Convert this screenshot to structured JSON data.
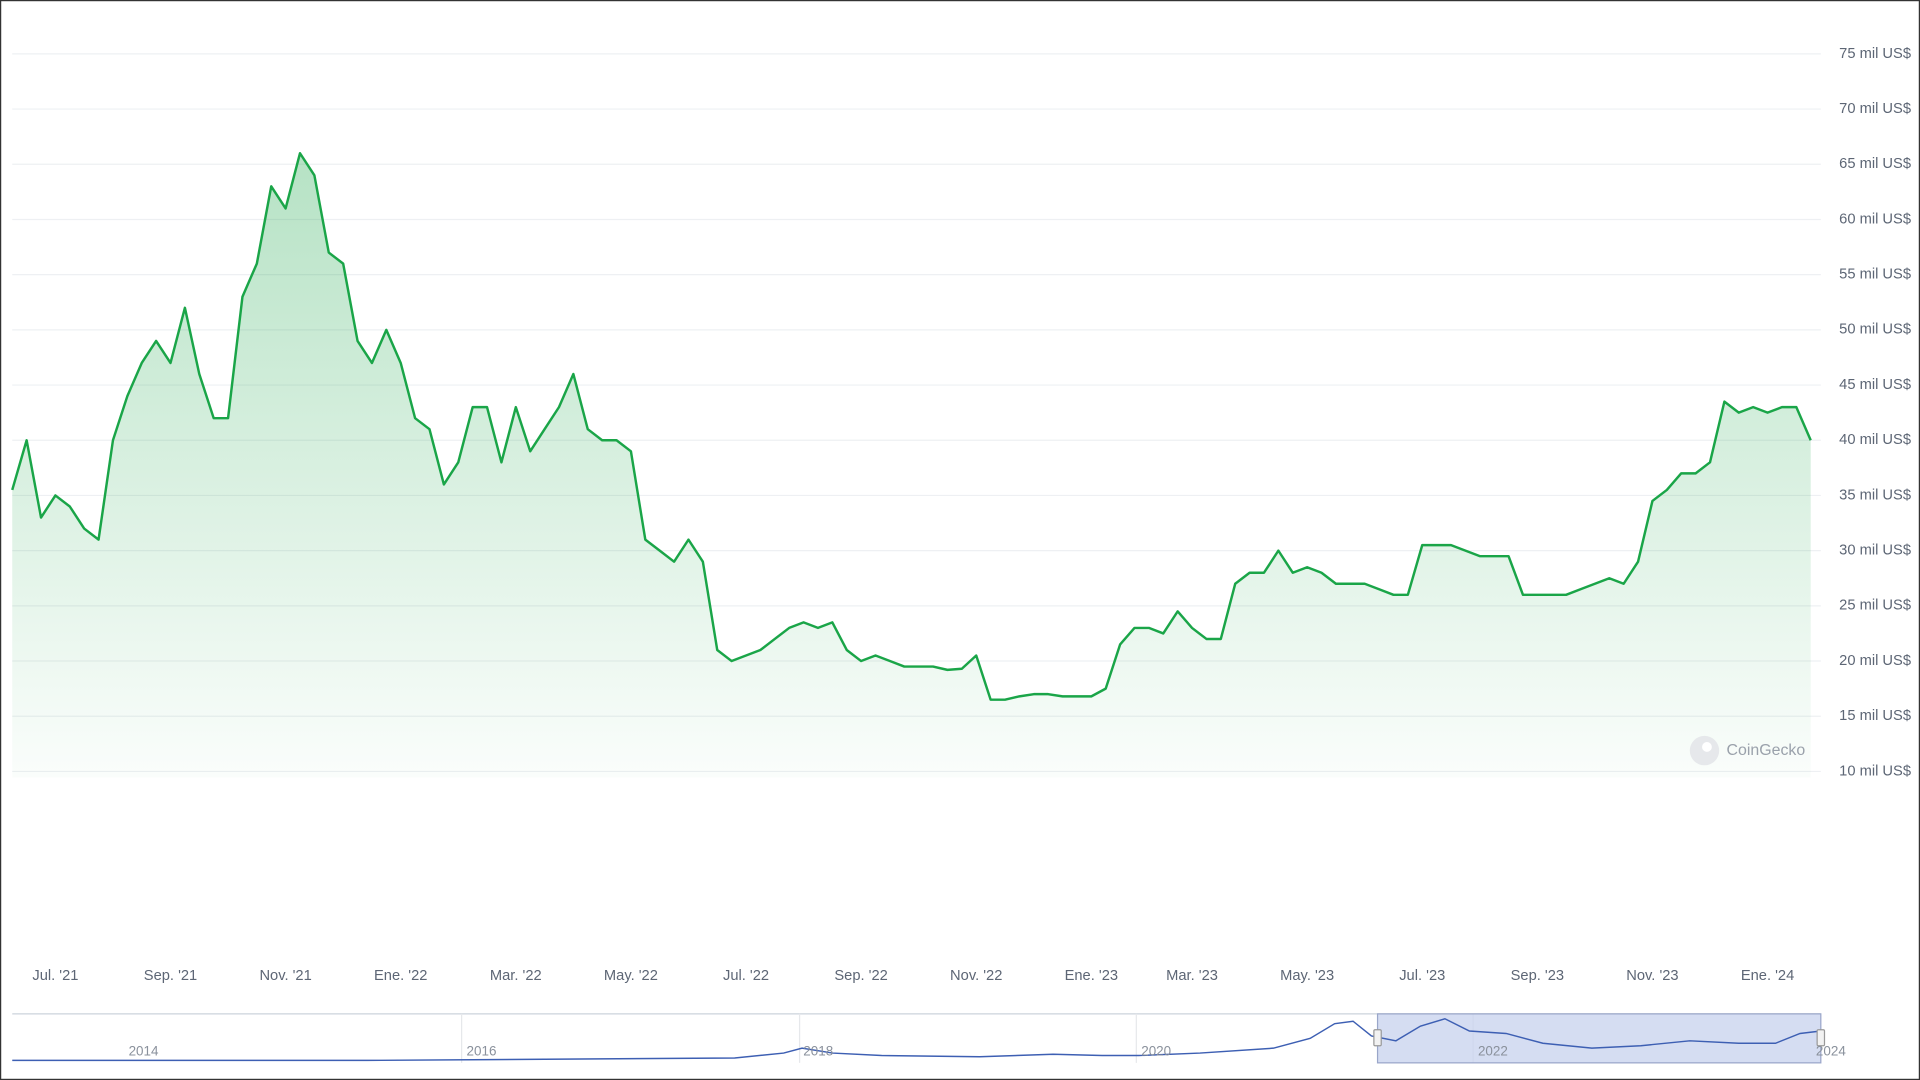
{
  "chart_data": {
    "type": "line",
    "categories": [
      null,
      null,
      null,
      "Jul. '21",
      null,
      null,
      null,
      null,
      null,
      null,
      null,
      "Sep. '21",
      null,
      null,
      null,
      null,
      null,
      null,
      null,
      "Nov. '21",
      null,
      null,
      null,
      null,
      null,
      null,
      null,
      "Ene. '22",
      null,
      null,
      null,
      null,
      null,
      null,
      null,
      "Mar. '22",
      null,
      null,
      null,
      null,
      null,
      null,
      null,
      "May. '22",
      null,
      null,
      null,
      null,
      null,
      null,
      null,
      "Jul. '22",
      null,
      null,
      null,
      null,
      null,
      null,
      null,
      "Sep. '22",
      null,
      null,
      null,
      null,
      null,
      null,
      null,
      "Nov. '22",
      null,
      null,
      null,
      null,
      null,
      null,
      null,
      "Ene. '23",
      null,
      null,
      null,
      null,
      null,
      null,
      "Mar. '23",
      null,
      null,
      null,
      null,
      null,
      null,
      null,
      "May. '23",
      null,
      null,
      null,
      null,
      null,
      null,
      null,
      "Jul. '23",
      null,
      null,
      null,
      null,
      null,
      null,
      null,
      "Sep. '23",
      null,
      null,
      null,
      null,
      null,
      null,
      null,
      "Nov. '23",
      null,
      null,
      null,
      null,
      null,
      null,
      null,
      "Ene. '24",
      null,
      null,
      null
    ],
    "series": [
      {
        "color": "#1aa548",
        "values": [
          35.5,
          40,
          33,
          35,
          34,
          32,
          31,
          40,
          44,
          47,
          49,
          47,
          52,
          46,
          42,
          42,
          53,
          56,
          63,
          61,
          66,
          64,
          57,
          56,
          49,
          47,
          50,
          47,
          42,
          41,
          36,
          38,
          43,
          43,
          38,
          43,
          39,
          41,
          43,
          46,
          41,
          40,
          40,
          39,
          31,
          30,
          29,
          31,
          29,
          21,
          20,
          20.5,
          21,
          22,
          23,
          23.5,
          23,
          23.5,
          21,
          20,
          20.5,
          20,
          19.5,
          19.5,
          19.5,
          19.2,
          19.3,
          20.5,
          16.5,
          16.5,
          16.8,
          17,
          17,
          16.8,
          16.8,
          16.8,
          17.5,
          21.5,
          23,
          23,
          22.5,
          24.5,
          23,
          22,
          22,
          27,
          28,
          28,
          30,
          28,
          28.5,
          28,
          27,
          27,
          27,
          26.5,
          26,
          26,
          30.5,
          30.5,
          30.5,
          30,
          29.5,
          29.5,
          29.5,
          26,
          26,
          26,
          26,
          26.5,
          27,
          27.5,
          27,
          29,
          34.5,
          35.5,
          37,
          37,
          38,
          43.5,
          42.5,
          43,
          42.5,
          43,
          43,
          40
        ]
      }
    ],
    "ylim": [
      10,
      75
    ],
    "yticks": [
      {
        "value": 10,
        "label": "10 mil US$"
      },
      {
        "value": 15,
        "label": "15 mil US$"
      },
      {
        "value": 20,
        "label": "20 mil US$"
      },
      {
        "value": 25,
        "label": "25 mil US$"
      },
      {
        "value": 30,
        "label": "30 mil US$"
      },
      {
        "value": 35,
        "label": "35 mil US$"
      },
      {
        "value": 40,
        "label": "40 mil US$"
      },
      {
        "value": 45,
        "label": "45 mil US$"
      },
      {
        "value": 50,
        "label": "50 mil US$"
      },
      {
        "value": 55,
        "label": "55 mil US$"
      },
      {
        "value": 60,
        "label": "60 mil US$"
      },
      {
        "value": 65,
        "label": "65 mil US$"
      },
      {
        "value": 70,
        "label": "70 mil US$"
      },
      {
        "value": 75,
        "label": "75 mil US$"
      }
    ],
    "grid": true,
    "watermark": "CoinGecko",
    "navigator_labels": [
      "2014",
      "2016",
      "2018",
      "2020",
      "2022",
      "2024"
    ]
  }
}
